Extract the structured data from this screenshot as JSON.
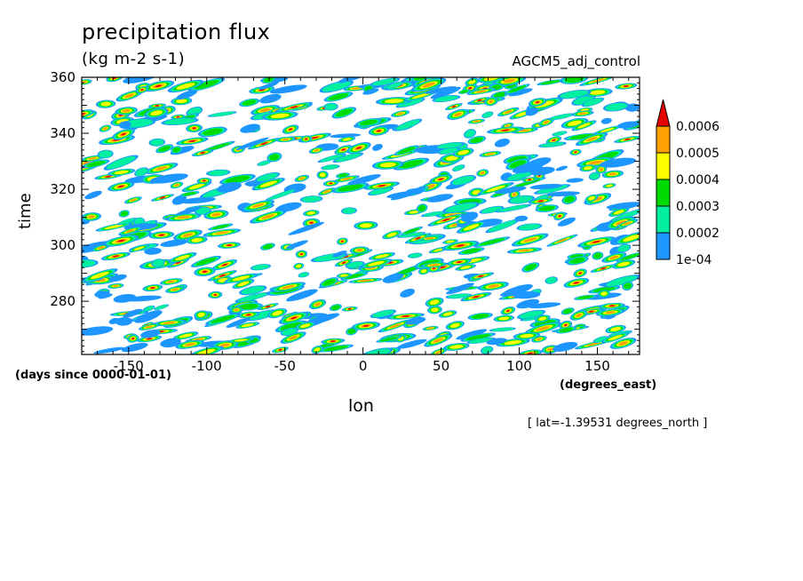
{
  "header": {
    "title": "precipitation flux",
    "units": "(kg m-2 s-1)",
    "dataset": "AGCM5_adj_control"
  },
  "footer": {
    "lat_note": "[ lat=-1.39531 degrees_north ]"
  },
  "chart_data": {
    "type": "heatmap",
    "title": "precipitation flux",
    "subtitle": "(kg m-2 s-1)",
    "xlabel": "lon",
    "xunits": "(degrees_east)",
    "ylabel": "time",
    "yunits": "(days since 0000-01-01)",
    "xlim": [
      -180,
      177
    ],
    "ylim": [
      261,
      360
    ],
    "xticks": [
      -150,
      -100,
      -50,
      0,
      50,
      100,
      150
    ],
    "yticks": [
      280,
      300,
      320,
      340,
      360
    ],
    "colorbar": {
      "levels": [
        "1e-04",
        "0.0002",
        "0.0003",
        "0.0004",
        "0.0005",
        "0.0006"
      ],
      "colors": [
        "#1e96ff",
        "#00f0a0",
        "#00dc00",
        "#ffff00",
        "#ffa000",
        "#e60000"
      ],
      "extend": "max"
    },
    "fixed_latitude": "lat=-1.39531 degrees_north",
    "grid": false
  }
}
